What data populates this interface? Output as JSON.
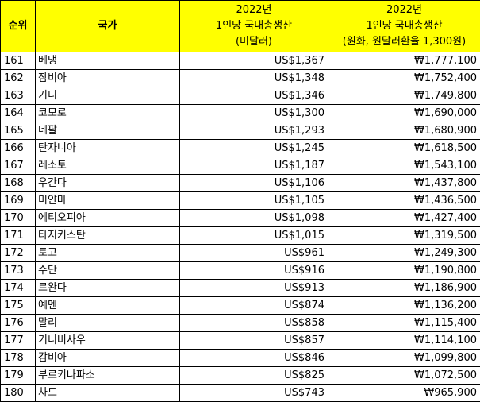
{
  "header": {
    "rank": "순위",
    "country": "국가",
    "usd": [
      "2022년",
      "1인당 국내총생산",
      "(미달러)"
    ],
    "krw": [
      "2022년",
      "1인당 국내총생산",
      "(원화, 원달러환율 1,300원)"
    ]
  },
  "rows": [
    {
      "rank": "161",
      "country": "베냉",
      "usd": "US$1,367",
      "krw": "₩1,777,100"
    },
    {
      "rank": "162",
      "country": "잠비아",
      "usd": "US$1,348",
      "krw": "₩1,752,400"
    },
    {
      "rank": "163",
      "country": "기니",
      "usd": "US$1,346",
      "krw": "₩1,749,800"
    },
    {
      "rank": "164",
      "country": "코모로",
      "usd": "US$1,300",
      "krw": "₩1,690,000"
    },
    {
      "rank": "165",
      "country": "네팔",
      "usd": "US$1,293",
      "krw": "₩1,680,900"
    },
    {
      "rank": "166",
      "country": "탄자니아",
      "usd": "US$1,245",
      "krw": "₩1,618,500"
    },
    {
      "rank": "167",
      "country": "레소토",
      "usd": "US$1,187",
      "krw": "₩1,543,100"
    },
    {
      "rank": "168",
      "country": "우간다",
      "usd": "US$1,106",
      "krw": "₩1,437,800"
    },
    {
      "rank": "169",
      "country": "미얀마",
      "usd": "US$1,105",
      "krw": "₩1,436,500"
    },
    {
      "rank": "170",
      "country": "에티오피아",
      "usd": "US$1,098",
      "krw": "₩1,427,400"
    },
    {
      "rank": "171",
      "country": "타지키스탄",
      "usd": "US$1,015",
      "krw": "₩1,319,500"
    },
    {
      "rank": "172",
      "country": "토고",
      "usd": "US$961",
      "krw": "₩1,249,300"
    },
    {
      "rank": "173",
      "country": "수단",
      "usd": "US$916",
      "krw": "₩1,190,800"
    },
    {
      "rank": "174",
      "country": "르완다",
      "usd": "US$913",
      "krw": "₩1,186,900"
    },
    {
      "rank": "175",
      "country": "예멘",
      "usd": "US$874",
      "krw": "₩1,136,200"
    },
    {
      "rank": "176",
      "country": "말리",
      "usd": "US$858",
      "krw": "₩1,115,400"
    },
    {
      "rank": "177",
      "country": "기니비사우",
      "usd": "US$857",
      "krw": "₩1,114,100"
    },
    {
      "rank": "178",
      "country": "감비아",
      "usd": "US$846",
      "krw": "₩1,099,800"
    },
    {
      "rank": "179",
      "country": "부르키나파소",
      "usd": "US$825",
      "krw": "₩1,072,500"
    },
    {
      "rank": "180",
      "country": "차드",
      "usd": "US$743",
      "krw": "₩965,900"
    }
  ]
}
